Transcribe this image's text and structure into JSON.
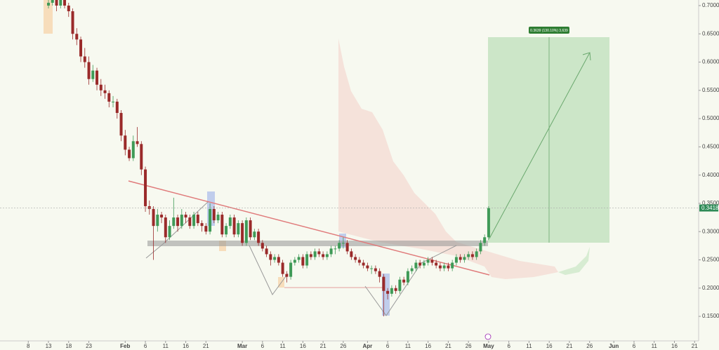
{
  "chart_data": {
    "type": "candlestick",
    "position_label": "0.3639 (130.10%) 3,639",
    "colors": {
      "up": "#3f9a57",
      "down": "#9a2a2a"
    },
    "xlim": [
      1,
      174
    ],
    "ylim": [
      0.1066,
      0.7099
    ],
    "yticks": [
      {
        "value": 0.15,
        "label": "0.1500"
      },
      {
        "value": 0.2,
        "label": "0.2000"
      },
      {
        "value": 0.25,
        "label": "0.2500"
      },
      {
        "value": 0.3,
        "label": "0.3000"
      },
      {
        "value": 0.35,
        "label": "0.3500"
      },
      {
        "value": 0.4,
        "label": "0.4000"
      },
      {
        "value": 0.45,
        "label": "0.4500"
      },
      {
        "value": 0.5,
        "label": "0.5000"
      },
      {
        "value": 0.55,
        "label": "0.5500"
      },
      {
        "value": 0.6,
        "label": "0.6000"
      },
      {
        "value": 0.65,
        "label": "0.6500"
      },
      {
        "value": 0.7,
        "label": "0.7000"
      }
    ],
    "xticks": [
      {
        "value": 8,
        "label": "8"
      },
      {
        "value": 13,
        "label": "13"
      },
      {
        "value": 18,
        "label": "18"
      },
      {
        "value": 23,
        "label": "23"
      },
      {
        "value": 32,
        "label": "Feb"
      },
      {
        "value": 37,
        "label": "6"
      },
      {
        "value": 42,
        "label": "11"
      },
      {
        "value": 47,
        "label": "16"
      },
      {
        "value": 52,
        "label": "21"
      },
      {
        "value": 61,
        "label": "Mar"
      },
      {
        "value": 66,
        "label": "6"
      },
      {
        "value": 71,
        "label": "11"
      },
      {
        "value": 76,
        "label": "16"
      },
      {
        "value": 81,
        "label": "21"
      },
      {
        "value": 86,
        "label": "26"
      },
      {
        "value": 92,
        "label": "Apr"
      },
      {
        "value": 97,
        "label": "6"
      },
      {
        "value": 102,
        "label": "11"
      },
      {
        "value": 107,
        "label": "16"
      },
      {
        "value": 112,
        "label": "21"
      },
      {
        "value": 117,
        "label": "26"
      },
      {
        "value": 122,
        "label": "May"
      },
      {
        "value": 127,
        "label": "6"
      },
      {
        "value": 132,
        "label": "11"
      },
      {
        "value": 137,
        "label": "16"
      },
      {
        "value": 142,
        "label": "21"
      },
      {
        "value": 147,
        "label": "26"
      },
      {
        "value": 153,
        "label": "Jun"
      },
      {
        "value": 158,
        "label": "6"
      },
      {
        "value": 163,
        "label": "11"
      },
      {
        "value": 168,
        "label": "16"
      },
      {
        "value": 173,
        "label": "21"
      }
    ],
    "x": [
      13,
      14,
      15,
      16,
      17,
      18,
      19,
      20,
      21,
      22,
      23,
      24,
      25,
      26,
      27,
      28,
      29,
      30,
      31,
      32,
      33,
      34,
      35,
      36,
      37,
      38,
      39,
      40,
      41,
      42,
      43,
      44,
      45,
      46,
      47,
      48,
      49,
      50,
      51,
      52,
      53,
      54,
      55,
      56,
      57,
      58,
      59,
      60,
      61,
      62,
      63,
      64,
      65,
      66,
      67,
      68,
      69,
      70,
      71,
      72,
      73,
      74,
      75,
      76,
      77,
      78,
      79,
      80,
      81,
      82,
      83,
      84,
      85,
      86,
      87,
      88,
      89,
      90,
      91,
      92,
      93,
      94,
      95,
      96,
      97,
      98,
      99,
      100,
      101,
      102,
      103,
      104,
      105,
      106,
      107,
      108,
      109,
      110,
      111,
      112,
      113,
      114,
      115,
      116,
      117,
      118,
      119,
      120,
      121,
      122
    ],
    "ohlc": [
      [
        0.7,
        0.715,
        0.695,
        0.705
      ],
      [
        0.705,
        0.72,
        0.7,
        0.71
      ],
      [
        0.71,
        0.715,
        0.69,
        0.7
      ],
      [
        0.7,
        0.72,
        0.695,
        0.715
      ],
      [
        0.715,
        0.72,
        0.695,
        0.7
      ],
      [
        0.7,
        0.705,
        0.68,
        0.69
      ],
      [
        0.69,
        0.695,
        0.64,
        0.65
      ],
      [
        0.65,
        0.66,
        0.63,
        0.64
      ],
      [
        0.64,
        0.645,
        0.6,
        0.61
      ],
      [
        0.61,
        0.625,
        0.59,
        0.6
      ],
      [
        0.6,
        0.61,
        0.56,
        0.57
      ],
      [
        0.57,
        0.595,
        0.565,
        0.585
      ],
      [
        0.585,
        0.59,
        0.55,
        0.56
      ],
      [
        0.56,
        0.57,
        0.54,
        0.55
      ],
      [
        0.55,
        0.56,
        0.535,
        0.545
      ],
      [
        0.545,
        0.55,
        0.52,
        0.53
      ],
      [
        0.53,
        0.54,
        0.52,
        0.53
      ],
      [
        0.53,
        0.535,
        0.5,
        0.51
      ],
      [
        0.51,
        0.515,
        0.46,
        0.47
      ],
      [
        0.47,
        0.48,
        0.435,
        0.445
      ],
      [
        0.445,
        0.45,
        0.425,
        0.43
      ],
      [
        0.43,
        0.47,
        0.425,
        0.46
      ],
      [
        0.46,
        0.485,
        0.45,
        0.455
      ],
      [
        0.455,
        0.46,
        0.4,
        0.41
      ],
      [
        0.41,
        0.415,
        0.335,
        0.345
      ],
      [
        0.345,
        0.355,
        0.33,
        0.34
      ],
      [
        0.34,
        0.345,
        0.25,
        0.31
      ],
      [
        0.31,
        0.34,
        0.3,
        0.33
      ],
      [
        0.33,
        0.335,
        0.315,
        0.325
      ],
      [
        0.325,
        0.33,
        0.28,
        0.29
      ],
      [
        0.29,
        0.32,
        0.285,
        0.31
      ],
      [
        0.31,
        0.36,
        0.305,
        0.325
      ],
      [
        0.325,
        0.33,
        0.3,
        0.31
      ],
      [
        0.31,
        0.34,
        0.305,
        0.33
      ],
      [
        0.33,
        0.335,
        0.315,
        0.325
      ],
      [
        0.325,
        0.33,
        0.305,
        0.31
      ],
      [
        0.31,
        0.335,
        0.305,
        0.33
      ],
      [
        0.33,
        0.335,
        0.31,
        0.315
      ],
      [
        0.315,
        0.32,
        0.3,
        0.31
      ],
      [
        0.31,
        0.315,
        0.295,
        0.3
      ],
      [
        0.3,
        0.35,
        0.295,
        0.34
      ],
      [
        0.34,
        0.345,
        0.315,
        0.32
      ],
      [
        0.32,
        0.335,
        0.315,
        0.33
      ],
      [
        0.33,
        0.335,
        0.29,
        0.295
      ],
      [
        0.295,
        0.315,
        0.29,
        0.31
      ],
      [
        0.31,
        0.33,
        0.305,
        0.325
      ],
      [
        0.325,
        0.33,
        0.29,
        0.295
      ],
      [
        0.295,
        0.32,
        0.29,
        0.315
      ],
      [
        0.315,
        0.32,
        0.275,
        0.28
      ],
      [
        0.28,
        0.325,
        0.275,
        0.32
      ],
      [
        0.32,
        0.325,
        0.285,
        0.29
      ],
      [
        0.29,
        0.305,
        0.285,
        0.3
      ],
      [
        0.3,
        0.305,
        0.275,
        0.28
      ],
      [
        0.28,
        0.285,
        0.265,
        0.27
      ],
      [
        0.27,
        0.275,
        0.255,
        0.26
      ],
      [
        0.26,
        0.265,
        0.24,
        0.25
      ],
      [
        0.25,
        0.26,
        0.245,
        0.255
      ],
      [
        0.255,
        0.26,
        0.24,
        0.245
      ],
      [
        0.245,
        0.25,
        0.22,
        0.225
      ],
      [
        0.225,
        0.23,
        0.21,
        0.22
      ],
      [
        0.22,
        0.25,
        0.215,
        0.245
      ],
      [
        0.245,
        0.255,
        0.24,
        0.25
      ],
      [
        0.25,
        0.26,
        0.245,
        0.255
      ],
      [
        0.255,
        0.26,
        0.235,
        0.24
      ],
      [
        0.24,
        0.265,
        0.235,
        0.26
      ],
      [
        0.26,
        0.265,
        0.25,
        0.255
      ],
      [
        0.255,
        0.27,
        0.25,
        0.265
      ],
      [
        0.265,
        0.27,
        0.255,
        0.26
      ],
      [
        0.26,
        0.265,
        0.25,
        0.255
      ],
      [
        0.255,
        0.265,
        0.25,
        0.26
      ],
      [
        0.26,
        0.275,
        0.255,
        0.27
      ],
      [
        0.27,
        0.275,
        0.26,
        0.27
      ],
      [
        0.27,
        0.285,
        0.265,
        0.28
      ],
      [
        0.28,
        0.29,
        0.27,
        0.28
      ],
      [
        0.28,
        0.285,
        0.26,
        0.265
      ],
      [
        0.265,
        0.27,
        0.25,
        0.255
      ],
      [
        0.255,
        0.26,
        0.245,
        0.25
      ],
      [
        0.25,
        0.255,
        0.24,
        0.245
      ],
      [
        0.245,
        0.25,
        0.235,
        0.24
      ],
      [
        0.24,
        0.245,
        0.23,
        0.235
      ],
      [
        0.235,
        0.24,
        0.225,
        0.235
      ],
      [
        0.235,
        0.24,
        0.225,
        0.23
      ],
      [
        0.23,
        0.235,
        0.21,
        0.22
      ],
      [
        0.22,
        0.225,
        0.15,
        0.195
      ],
      [
        0.195,
        0.2,
        0.18,
        0.19
      ],
      [
        0.19,
        0.205,
        0.185,
        0.2
      ],
      [
        0.2,
        0.205,
        0.19,
        0.195
      ],
      [
        0.195,
        0.22,
        0.19,
        0.215
      ],
      [
        0.215,
        0.22,
        0.205,
        0.21
      ],
      [
        0.21,
        0.235,
        0.205,
        0.23
      ],
      [
        0.23,
        0.24,
        0.225,
        0.235
      ],
      [
        0.235,
        0.25,
        0.23,
        0.245
      ],
      [
        0.245,
        0.25,
        0.235,
        0.24
      ],
      [
        0.24,
        0.25,
        0.235,
        0.245
      ],
      [
        0.245,
        0.255,
        0.24,
        0.25
      ],
      [
        0.25,
        0.255,
        0.24,
        0.245
      ],
      [
        0.245,
        0.25,
        0.235,
        0.24
      ],
      [
        0.24,
        0.245,
        0.23,
        0.235
      ],
      [
        0.235,
        0.245,
        0.23,
        0.24
      ],
      [
        0.24,
        0.245,
        0.23,
        0.235
      ],
      [
        0.235,
        0.25,
        0.23,
        0.245
      ],
      [
        0.245,
        0.26,
        0.24,
        0.255
      ],
      [
        0.255,
        0.26,
        0.245,
        0.25
      ],
      [
        0.25,
        0.26,
        0.245,
        0.255
      ],
      [
        0.255,
        0.265,
        0.25,
        0.26
      ],
      [
        0.26,
        0.265,
        0.25,
        0.255
      ],
      [
        0.255,
        0.27,
        0.25,
        0.265
      ],
      [
        0.265,
        0.285,
        0.26,
        0.28
      ],
      [
        0.28,
        0.295,
        0.275,
        0.29
      ],
      [
        0.29,
        0.345,
        0.285,
        0.3418
      ]
    ]
  }
}
